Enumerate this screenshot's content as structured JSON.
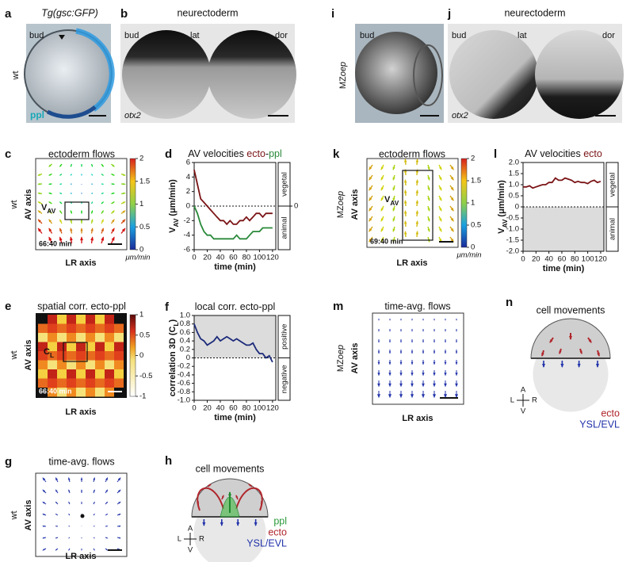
{
  "panels": {
    "a": {
      "label": "a",
      "title": "Tg(gsc:GFP)",
      "row_label": "wt",
      "stage": "bud",
      "tissue": "ppl"
    },
    "b": {
      "label": "b",
      "title": "neurectoderm",
      "stage": "bud",
      "views": [
        "lat",
        "dor"
      ],
      "gene": "otx2"
    },
    "i": {
      "label": "i",
      "row_label": [
        "MZ",
        "oep"
      ],
      "stage": "bud"
    },
    "j": {
      "label": "j",
      "title": "neurectoderm",
      "stage": "bud",
      "views": [
        "lat",
        "dor"
      ],
      "gene": "otx2"
    },
    "c": {
      "label": "c",
      "title": "ectoderm flows",
      "row_label": "wt",
      "y_label": "AV axis",
      "x_label": "LR axis",
      "vector": [
        "V",
        "AV"
      ],
      "time": "66:40 min",
      "colorbar": {
        "ticks": [
          2,
          1.5,
          1,
          0.5,
          0
        ],
        "unit": "μm/min"
      }
    },
    "e": {
      "label": "e",
      "title": "spatial corr. ecto-ppl",
      "row_label": "wt",
      "y_label": "AV axis",
      "x_label": "LR axis",
      "vector": [
        "C",
        "L"
      ],
      "time": "66:40 min",
      "colorbar": {
        "ticks": [
          1,
          0.5,
          0,
          -0.5,
          -1
        ]
      }
    },
    "g": {
      "label": "g",
      "title": "time-avg. flows",
      "row_label": "wt",
      "y_label": "AV axis",
      "x_label": "LR axis"
    },
    "h": {
      "label": "h",
      "title": "cell movements",
      "legend": [
        "ppl",
        "ecto",
        "YSL/EVL"
      ],
      "compass": [
        "A",
        "L",
        "R",
        "V"
      ]
    },
    "k": {
      "label": "k",
      "title": "ectoderm flows",
      "row_label": [
        "MZ",
        "oep"
      ],
      "y_label": "AV axis",
      "x_label": "LR axis",
      "vector": [
        "V",
        "AV"
      ],
      "time": "69:40 min",
      "colorbar": {
        "ticks": [
          2,
          1.5,
          1,
          0.5,
          0
        ],
        "unit": "μm/min"
      }
    },
    "m": {
      "label": "m",
      "title": "time-avg. flows",
      "row_label": [
        "MZ",
        "oep"
      ],
      "y_label": "AV axis",
      "x_label": "LR axis"
    },
    "n": {
      "label": "n",
      "title": "cell movements",
      "legend": [
        "ecto",
        "YSL/EVL"
      ],
      "compass": [
        "A",
        "L",
        "R",
        "V"
      ]
    }
  },
  "chart_data": [
    {
      "type": "line",
      "label": "d",
      "title": [
        "AV velocities ",
        "ecto",
        "-",
        "ppl"
      ],
      "x": [
        0,
        5,
        10,
        15,
        20,
        25,
        30,
        35,
        40,
        45,
        50,
        55,
        60,
        65,
        70,
        75,
        80,
        85,
        90,
        95,
        100,
        105,
        110,
        115,
        120
      ],
      "series": [
        {
          "name": "ecto",
          "color": "#7b1416",
          "values": [
            5,
            3,
            1,
            0.5,
            0,
            -0.5,
            -1,
            -1.5,
            -2,
            -2,
            -2.5,
            -2,
            -2.5,
            -2.5,
            -2,
            -2,
            -1.5,
            -2,
            -1.5,
            -1,
            -1,
            -1.5,
            -1,
            -1,
            -1
          ]
        },
        {
          "name": "ppl",
          "color": "#2a8a3a",
          "values": [
            0,
            -1,
            -2.5,
            -3.5,
            -4,
            -4,
            -4.5,
            -4.5,
            -4.5,
            -4.5,
            -4.5,
            -4.5,
            -4.5,
            -4,
            -4.5,
            -4.5,
            -4.5,
            -4,
            -3.5,
            -3.5,
            -3.5,
            -3,
            -3,
            -3,
            -3
          ]
        }
      ],
      "xlim": [
        0,
        125
      ],
      "xticks": [
        0,
        20,
        40,
        60,
        80,
        100,
        120
      ],
      "ylim": [
        -6,
        6
      ],
      "yticks": [
        -6,
        -4,
        -2,
        0,
        2,
        4,
        6
      ],
      "y2lim": [
        -6,
        6
      ],
      "y2ticks": [
        0
      ],
      "zero_line": true,
      "xlabel": "time (min)",
      "ylabel": [
        "V",
        "AV",
        " (μm/min)"
      ],
      "side_labels": [
        "vegetal",
        "animal"
      ]
    },
    {
      "type": "line",
      "label": "f",
      "title": [
        "local corr. ecto-ppl"
      ],
      "shade": "above",
      "x": [
        0,
        5,
        10,
        15,
        20,
        25,
        30,
        35,
        40,
        45,
        50,
        55,
        60,
        65,
        70,
        75,
        80,
        85,
        90,
        95,
        100,
        105,
        110,
        115,
        120
      ],
      "series": [
        {
          "color": "#1c2a7a",
          "values": [
            0.8,
            0.6,
            0.45,
            0.4,
            0.3,
            0.35,
            0.4,
            0.5,
            0.4,
            0.45,
            0.5,
            0.45,
            0.4,
            0.45,
            0.4,
            0.35,
            0.3,
            0.3,
            0.35,
            0.2,
            0.1,
            0.1,
            0,
            0.05,
            -0.1
          ]
        }
      ],
      "xlim": [
        0,
        125
      ],
      "xticks": [
        0,
        20,
        40,
        60,
        80,
        100,
        120
      ],
      "ylim": [
        -1,
        1
      ],
      "yticks": [
        {
          "value": 1,
          "label": "1.0"
        },
        0.8,
        0.6,
        0.4,
        0.2,
        0,
        -0.2,
        -0.4,
        -0.6,
        -0.8,
        {
          "value": -1,
          "label": "-1.0"
        }
      ],
      "zero_line": true,
      "xlabel": "time (min)",
      "ylabel": [
        "correlation 3D (C",
        "L",
        ")"
      ],
      "side_labels": [
        "positive",
        "negative"
      ]
    },
    {
      "type": "line",
      "label": "l",
      "title": [
        "AV velocities ",
        "ecto"
      ],
      "shade": "below",
      "x": [
        0,
        5,
        10,
        15,
        20,
        25,
        30,
        35,
        40,
        45,
        50,
        55,
        60,
        65,
        70,
        75,
        80,
        85,
        90,
        95,
        100,
        105,
        110,
        115,
        120
      ],
      "series": [
        {
          "name": "ecto",
          "color": "#7b1416",
          "values": [
            0.9,
            0.9,
            0.95,
            0.85,
            0.9,
            0.95,
            1.0,
            1.0,
            1.1,
            1.1,
            1.3,
            1.2,
            1.2,
            1.3,
            1.25,
            1.2,
            1.1,
            1.15,
            1.1,
            1.1,
            1.05,
            1.15,
            1.2,
            1.1,
            1.15
          ]
        }
      ],
      "xlim": [
        0,
        125
      ],
      "xticks": [
        0,
        20,
        40,
        60,
        80,
        100,
        120
      ],
      "ylim": [
        -2,
        2
      ],
      "yticks": [
        {
          "value": 2,
          "label": "2.0"
        },
        1.5,
        {
          "value": 1,
          "label": "1.0"
        },
        0.5,
        0,
        -0.5,
        {
          "value": -1,
          "label": "-1.0"
        },
        -1.5,
        {
          "value": -2,
          "label": "-2.0"
        }
      ],
      "zero_line": true,
      "xlabel": "time (min)",
      "ylabel": [
        "V",
        "AV",
        " (μm/min)"
      ],
      "side_labels": [
        "vegetal",
        "animal"
      ]
    }
  ]
}
